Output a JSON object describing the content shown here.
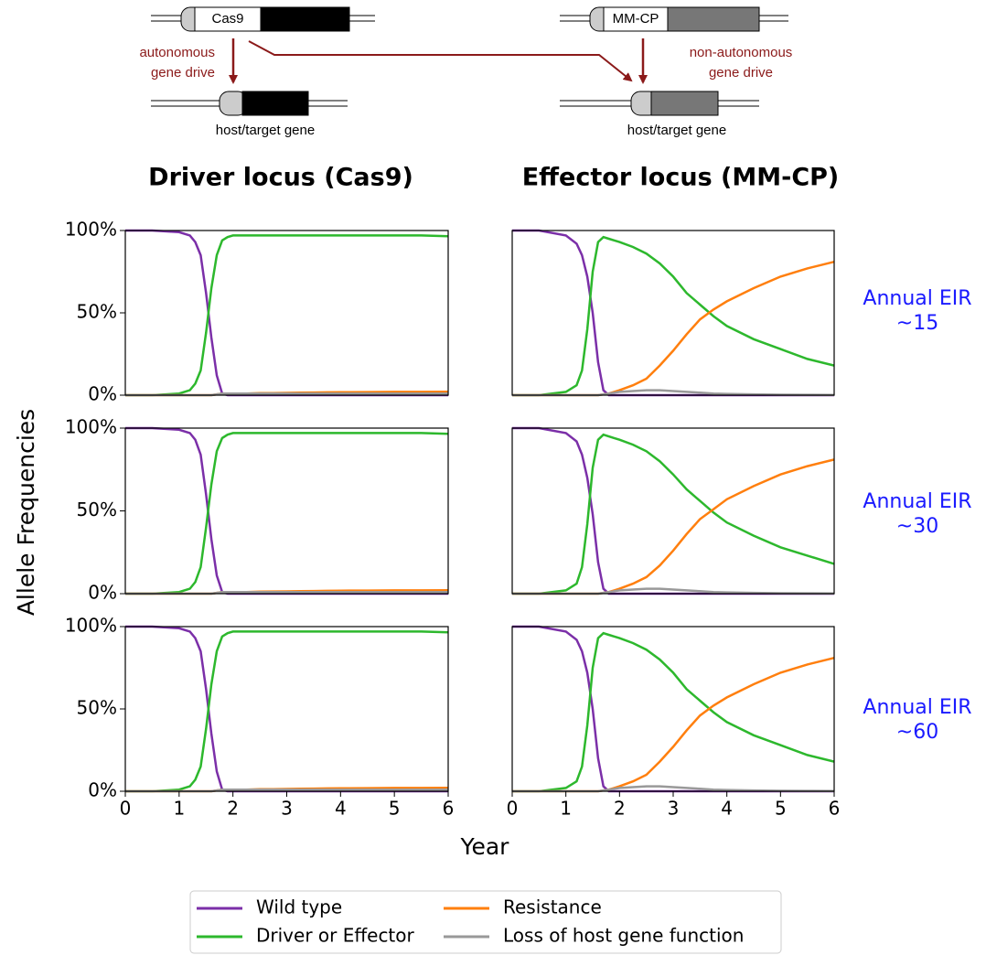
{
  "diagram": {
    "driver_box": "Cas9",
    "effector_box": "MM-CP",
    "left_arrow_label": [
      "autonomous",
      "gene drive"
    ],
    "right_arrow_label": [
      "non-autonomous",
      "gene drive"
    ],
    "left_host": "host/target gene",
    "right_host": "host/target gene"
  },
  "figure": {
    "column_titles": [
      "Driver locus (Cas9)",
      "Effector locus (MM-CP)"
    ],
    "row_labels": [
      [
        "Annual EIR",
        "~15"
      ],
      [
        "Annual EIR",
        "~30"
      ],
      [
        "Annual EIR",
        "~60"
      ]
    ],
    "ylabel": "Allele Frequencies",
    "xlabel": "Year"
  },
  "chart_data": [
    {
      "type": "line",
      "xlim": [
        0,
        6
      ],
      "ylim": [
        0,
        100
      ],
      "yticks": [
        {
          "value": 0,
          "label": "0%"
        },
        {
          "value": 50,
          "label": "50%"
        },
        {
          "value": 100,
          "label": "100%"
        }
      ],
      "x": [
        0,
        0.5,
        1,
        1.2,
        1.3,
        1.4,
        1.5,
        1.6,
        1.7,
        1.8,
        1.9,
        2,
        2.25,
        2.5,
        2.75,
        3,
        3.25,
        3.5,
        3.75,
        4,
        4.5,
        5,
        5.5,
        6
      ],
      "series": [
        {
          "name": "Wild type",
          "color": "#7b2fa8",
          "values": [
            100,
            100,
            99,
            97,
            93,
            85,
            62,
            35,
            12,
            1,
            0,
            0,
            0,
            0,
            0,
            0,
            0,
            0,
            0,
            0,
            0,
            0,
            0,
            0
          ]
        },
        {
          "name": "Driver or Effector",
          "color": "#2db82d",
          "values": [
            0,
            0,
            1,
            3,
            7,
            15,
            38,
            65,
            85,
            94,
            96,
            97,
            97,
            97,
            97,
            97,
            97,
            97,
            97,
            97,
            97,
            97,
            97,
            96.5
          ]
        },
        {
          "name": "Resistance",
          "color": "#ff7f0e",
          "values": [
            0,
            0,
            0,
            0,
            0,
            0,
            0,
            0,
            0.5,
            1,
            1,
            1,
            1,
            1.2,
            1.3,
            1.4,
            1.5,
            1.6,
            1.7,
            1.8,
            1.9,
            2,
            2,
            2.1
          ]
        },
        {
          "name": "Loss of host gene function",
          "color": "#999999",
          "values": [
            0,
            0,
            0,
            0,
            0,
            0,
            0,
            0,
            0.5,
            1,
            1,
            1,
            1,
            1,
            1,
            1,
            1,
            1,
            1,
            1,
            1,
            1,
            1,
            1
          ]
        }
      ]
    },
    {
      "type": "line",
      "xlim": [
        0,
        6
      ],
      "ylim": [
        0,
        100
      ],
      "x": [
        0,
        0.5,
        1,
        1.2,
        1.3,
        1.4,
        1.5,
        1.6,
        1.7,
        1.8,
        1.9,
        2,
        2.25,
        2.5,
        2.75,
        3,
        3.25,
        3.5,
        3.75,
        4,
        4.5,
        5,
        5.5,
        6
      ],
      "series": [
        {
          "name": "Wild type",
          "color": "#7b2fa8",
          "values": [
            100,
            100,
            97,
            92,
            85,
            72,
            50,
            20,
            3,
            0,
            0,
            0,
            0,
            0,
            0,
            0,
            0,
            0,
            0,
            0,
            0,
            0,
            0,
            0
          ]
        },
        {
          "name": "Driver or Effector",
          "color": "#2db82d",
          "values": [
            0,
            0,
            2,
            6,
            15,
            40,
            75,
            93,
            96,
            95,
            94,
            93,
            90,
            86,
            80,
            72,
            62,
            55,
            48,
            42,
            34,
            28,
            22,
            18
          ]
        },
        {
          "name": "Resistance",
          "color": "#ff7f0e",
          "values": [
            0,
            0,
            0,
            0,
            0,
            0,
            0,
            0,
            0.5,
            1,
            2,
            3,
            6,
            10,
            18,
            27,
            37,
            46,
            52,
            57,
            65,
            72,
            77,
            81
          ]
        },
        {
          "name": "Loss of host gene function",
          "color": "#999999",
          "values": [
            0,
            0,
            0,
            0,
            0,
            0,
            0,
            0,
            0.5,
            1,
            1.5,
            2,
            2.5,
            3,
            3,
            2.5,
            2,
            1.5,
            1,
            0.8,
            0.5,
            0.3,
            0.2,
            0.1
          ]
        }
      ]
    },
    {
      "type": "line",
      "xlim": [
        0,
        6
      ],
      "ylim": [
        0,
        100
      ],
      "yticks": [
        {
          "value": 0,
          "label": "0%"
        },
        {
          "value": 50,
          "label": "50%"
        },
        {
          "value": 100,
          "label": "100%"
        }
      ],
      "x": [
        0,
        0.5,
        1,
        1.2,
        1.3,
        1.4,
        1.5,
        1.6,
        1.7,
        1.8,
        1.9,
        2,
        2.25,
        2.5,
        2.75,
        3,
        3.25,
        3.5,
        3.75,
        4,
        4.5,
        5,
        5.5,
        6
      ],
      "series": [
        {
          "name": "Wild type",
          "color": "#7b2fa8",
          "values": [
            100,
            100,
            99,
            97,
            93,
            84,
            60,
            33,
            11,
            1,
            0,
            0,
            0,
            0,
            0,
            0,
            0,
            0,
            0,
            0,
            0,
            0,
            0,
            0
          ]
        },
        {
          "name": "Driver or Effector",
          "color": "#2db82d",
          "values": [
            0,
            0,
            1,
            3,
            7,
            16,
            40,
            66,
            86,
            94,
            96,
            97,
            97,
            97,
            97,
            97,
            97,
            97,
            97,
            97,
            97,
            97,
            97,
            96.5
          ]
        },
        {
          "name": "Resistance",
          "color": "#ff7f0e",
          "values": [
            0,
            0,
            0,
            0,
            0,
            0,
            0,
            0,
            0.5,
            1,
            1,
            1,
            1,
            1.2,
            1.3,
            1.4,
            1.5,
            1.6,
            1.7,
            1.8,
            1.9,
            2,
            2,
            2.1
          ]
        },
        {
          "name": "Loss of host gene function",
          "color": "#999999",
          "values": [
            0,
            0,
            0,
            0,
            0,
            0,
            0,
            0,
            0.5,
            1,
            1,
            1,
            1,
            1,
            1,
            1,
            1,
            1,
            1,
            1,
            1,
            1,
            1,
            1
          ]
        }
      ]
    },
    {
      "type": "line",
      "xlim": [
        0,
        6
      ],
      "ylim": [
        0,
        100
      ],
      "x": [
        0,
        0.5,
        1,
        1.2,
        1.3,
        1.4,
        1.5,
        1.6,
        1.7,
        1.8,
        1.9,
        2,
        2.25,
        2.5,
        2.75,
        3,
        3.25,
        3.5,
        3.75,
        4,
        4.5,
        5,
        5.5,
        6
      ],
      "series": [
        {
          "name": "Wild type",
          "color": "#7b2fa8",
          "values": [
            100,
            100,
            97,
            92,
            84,
            70,
            48,
            19,
            3,
            0,
            0,
            0,
            0,
            0,
            0,
            0,
            0,
            0,
            0,
            0,
            0,
            0,
            0,
            0
          ]
        },
        {
          "name": "Driver or Effector",
          "color": "#2db82d",
          "values": [
            0,
            0,
            2,
            6,
            16,
            42,
            76,
            93,
            96,
            95,
            94,
            93,
            90,
            86,
            80,
            72,
            63,
            56,
            49,
            43,
            35,
            28,
            23,
            18
          ]
        },
        {
          "name": "Resistance",
          "color": "#ff7f0e",
          "values": [
            0,
            0,
            0,
            0,
            0,
            0,
            0,
            0,
            0.5,
            1,
            2,
            3,
            6,
            10,
            17,
            26,
            36,
            45,
            51,
            57,
            65,
            72,
            77,
            81
          ]
        },
        {
          "name": "Loss of host gene function",
          "color": "#999999",
          "values": [
            0,
            0,
            0,
            0,
            0,
            0,
            0,
            0,
            0.5,
            1,
            1.5,
            2,
            2.5,
            3,
            3,
            2.5,
            2,
            1.5,
            1,
            0.8,
            0.5,
            0.3,
            0.2,
            0.1
          ]
        }
      ]
    },
    {
      "type": "line",
      "xlim": [
        0,
        6
      ],
      "ylim": [
        0,
        100
      ],
      "yticks": [
        {
          "value": 0,
          "label": "0%"
        },
        {
          "value": 50,
          "label": "50%"
        },
        {
          "value": 100,
          "label": "100%"
        }
      ],
      "xticks": [
        0,
        1,
        2,
        3,
        4,
        5,
        6
      ],
      "x": [
        0,
        0.5,
        1,
        1.2,
        1.3,
        1.4,
        1.5,
        1.6,
        1.7,
        1.8,
        1.9,
        2,
        2.25,
        2.5,
        2.75,
        3,
        3.25,
        3.5,
        3.75,
        4,
        4.5,
        5,
        5.5,
        6
      ],
      "series": [
        {
          "name": "Wild type",
          "color": "#7b2fa8",
          "values": [
            100,
            100,
            99,
            97,
            93,
            85,
            62,
            35,
            12,
            1,
            0,
            0,
            0,
            0,
            0,
            0,
            0,
            0,
            0,
            0,
            0,
            0,
            0,
            0
          ]
        },
        {
          "name": "Driver or Effector",
          "color": "#2db82d",
          "values": [
            0,
            0,
            1,
            3,
            7,
            15,
            38,
            65,
            85,
            94,
            96,
            97,
            97,
            97,
            97,
            97,
            97,
            97,
            97,
            97,
            97,
            97,
            97,
            96.5
          ]
        },
        {
          "name": "Resistance",
          "color": "#ff7f0e",
          "values": [
            0,
            0,
            0,
            0,
            0,
            0,
            0,
            0,
            0.5,
            1,
            1,
            1,
            1,
            1.2,
            1.3,
            1.4,
            1.5,
            1.6,
            1.7,
            1.8,
            1.9,
            2,
            2,
            2.1
          ]
        },
        {
          "name": "Loss of host gene function",
          "color": "#999999",
          "values": [
            0,
            0,
            0,
            0,
            0,
            0,
            0,
            0,
            0.5,
            1,
            1,
            1,
            1,
            1,
            1,
            1,
            1,
            1,
            1,
            1,
            1,
            1,
            1,
            1
          ]
        }
      ]
    },
    {
      "type": "line",
      "xlim": [
        0,
        6
      ],
      "ylim": [
        0,
        100
      ],
      "xticks": [
        0,
        1,
        2,
        3,
        4,
        5,
        6
      ],
      "x": [
        0,
        0.5,
        1,
        1.2,
        1.3,
        1.4,
        1.5,
        1.6,
        1.7,
        1.8,
        1.9,
        2,
        2.25,
        2.5,
        2.75,
        3,
        3.25,
        3.5,
        3.75,
        4,
        4.5,
        5,
        5.5,
        6
      ],
      "series": [
        {
          "name": "Wild type",
          "color": "#7b2fa8",
          "values": [
            100,
            100,
            97,
            92,
            85,
            72,
            50,
            20,
            3,
            0,
            0,
            0,
            0,
            0,
            0,
            0,
            0,
            0,
            0,
            0,
            0,
            0,
            0,
            0
          ]
        },
        {
          "name": "Driver or Effector",
          "color": "#2db82d",
          "values": [
            0,
            0,
            2,
            6,
            15,
            40,
            75,
            93,
            96,
            95,
            94,
            93,
            90,
            86,
            80,
            72,
            62,
            55,
            48,
            42,
            34,
            28,
            22,
            18
          ]
        },
        {
          "name": "Resistance",
          "color": "#ff7f0e",
          "values": [
            0,
            0,
            0,
            0,
            0,
            0,
            0,
            0,
            0.5,
            1,
            2,
            3,
            6,
            10,
            18,
            27,
            37,
            46,
            52,
            57,
            65,
            72,
            77,
            81
          ]
        },
        {
          "name": "Loss of host gene function",
          "color": "#999999",
          "values": [
            0,
            0,
            0,
            0,
            0,
            0,
            0,
            0,
            0.5,
            1,
            1.5,
            2,
            2.5,
            3,
            3,
            2.5,
            2,
            1.5,
            1,
            0.8,
            0.5,
            0.3,
            0.2,
            0.1
          ]
        }
      ]
    }
  ]
}
